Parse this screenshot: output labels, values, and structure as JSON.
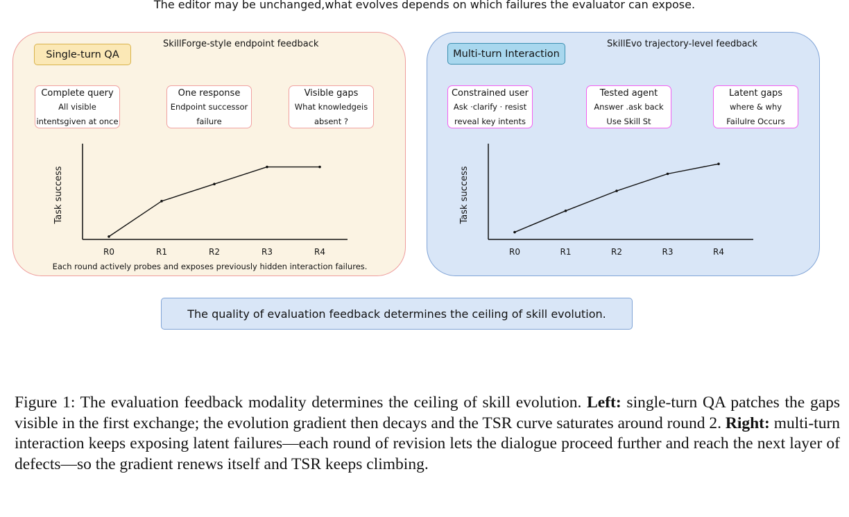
{
  "top_note": "The editor may be unchanged,what evolves depends on which failures the evaluator can expose.",
  "left_panel": {
    "tag": "Single-turn QA",
    "subhead": "SkillForge-style endpoint feedback",
    "cards": [
      {
        "title": "Complete query",
        "lines": [
          "All visible",
          "intentsgiven at once"
        ]
      },
      {
        "title": "One response",
        "lines": [
          "Endpoint successor",
          "failure"
        ]
      },
      {
        "title": "Visible gaps",
        "lines": [
          "What knowledgeis",
          "absent ?"
        ]
      }
    ],
    "bottom_text": "Each round actively probes and exposes previously hidden interaction failures."
  },
  "right_panel": {
    "tag": "Multi-turn Interaction",
    "subhead": "SkillEvo trajectory-level feedback",
    "cards": [
      {
        "title": "Constrained user",
        "lines": [
          "Ask ·clarify · resist",
          "reveal key intents"
        ]
      },
      {
        "title": "Tested agent",
        "lines": [
          "Answer .ask back",
          "Use Skill St"
        ]
      },
      {
        "title": "Latent gaps",
        "lines": [
          "where & why",
          "FailuIre Occurs"
        ]
      }
    ]
  },
  "chart_data": [
    {
      "type": "line",
      "categories": [
        "R0",
        "R1",
        "R2",
        "R3",
        "R4"
      ],
      "values": [
        0.12,
        0.41,
        0.55,
        0.69,
        0.69
      ],
      "ylabel": "Task success",
      "xlabel": "",
      "ylim": [
        0,
        1
      ],
      "grid": false
    },
    {
      "type": "line",
      "categories": [
        "R0",
        "R1",
        "R2",
        "R3",
        "R4"
      ],
      "values": [
        0.18,
        0.48,
        0.76,
        1.0,
        1.14
      ],
      "ylabel": "Task success",
      "xlabel": "",
      "ylim": [
        0,
        1.2
      ],
      "grid": false
    }
  ],
  "quality_box": "The quality of evaluation feedback determines the ceiling of skill evolution.",
  "figure_caption": {
    "label": "Figure 1:",
    "text1": "The evaluation feedback modality determines the ceiling of skill evolution.",
    "left_label": "Left:",
    "text2": "single-turn QA patches the gaps visible in the first exchange; the evolution gradient then decays and the TSR curve saturates around round 2.",
    "right_label": "Right:",
    "text3": "multi-turn interaction keeps exposing latent failures—each round of revision lets the dialogue proceed further and reach the next layer of defects—so the gradient renews itself and TSR keeps climbing."
  }
}
